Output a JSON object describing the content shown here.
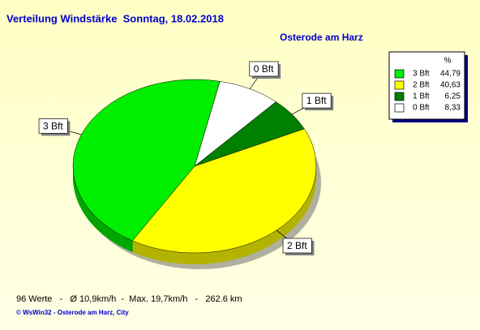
{
  "chart_data": {
    "type": "pie",
    "title": "Verteilung Windstärke  Sonntag, 18.02.2018",
    "subtitle": "Osterode am Harz",
    "legend_header": "%",
    "categories": [
      "3 Bft",
      "2 Bft",
      "1 Bft",
      "0 Bft"
    ],
    "values": [
      44.79,
      40.63,
      6.25,
      8.33
    ],
    "value_labels": [
      "44,79",
      "40,63",
      "6,25",
      "8,33"
    ],
    "colors": [
      "#00ee00",
      "#ffff00",
      "#008000",
      "#ffffff"
    ],
    "legend": "top-right",
    "footer": "96 Werte   -   Ø 10,9km/h  -  Max. 19,7km/h   -   262.6 km",
    "credit": "© WsWin32  -  Osterode am Harz, City"
  }
}
